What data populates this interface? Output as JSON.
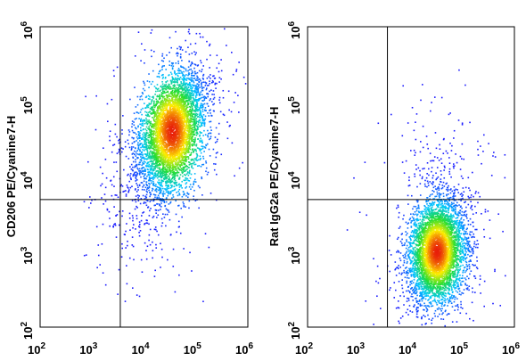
{
  "chart_data": [
    {
      "type": "scatter",
      "title": "",
      "xlabel": "",
      "ylabel": "CD206 PE/Cyanine7-H",
      "xscale": "log",
      "yscale": "log",
      "xlim": [
        100,
        1000000
      ],
      "ylim": [
        100,
        1000000
      ],
      "x_ticks": [
        {
          "value": 100,
          "base": "10",
          "exp": "2"
        },
        {
          "value": 1000,
          "base": "10",
          "exp": "3"
        },
        {
          "value": 10000,
          "base": "10",
          "exp": "4"
        },
        {
          "value": 100000,
          "base": "10",
          "exp": "5"
        },
        {
          "value": 1000000,
          "base": "10",
          "exp": "6"
        }
      ],
      "y_ticks": [
        {
          "value": 100,
          "base": "10",
          "exp": "2"
        },
        {
          "value": 1000,
          "base": "10",
          "exp": "3"
        },
        {
          "value": 10000,
          "base": "10",
          "exp": "4"
        },
        {
          "value": 100000,
          "base": "10",
          "exp": "5"
        },
        {
          "value": 1000000,
          "base": "10",
          "exp": "6"
        }
      ],
      "quadrant_gate": {
        "x": 3500,
        "y": 5000
      },
      "population_center": {
        "x": 35000,
        "y": 40000
      },
      "color_map": "density (blue → cyan → green → yellow → red)",
      "grid": false
    },
    {
      "type": "scatter",
      "title": "",
      "xlabel": "",
      "ylabel": "Rat IgG2a PE/Cyanine7-H",
      "xscale": "log",
      "yscale": "log",
      "xlim": [
        100,
        1000000
      ],
      "ylim": [
        100,
        1000000
      ],
      "x_ticks": [
        {
          "value": 100,
          "base": "10",
          "exp": "2"
        },
        {
          "value": 1000,
          "base": "10",
          "exp": "3"
        },
        {
          "value": 10000,
          "base": "10",
          "exp": "4"
        },
        {
          "value": 100000,
          "base": "10",
          "exp": "5"
        },
        {
          "value": 1000000,
          "base": "10",
          "exp": "6"
        }
      ],
      "y_ticks": [
        {
          "value": 100,
          "base": "10",
          "exp": "2"
        },
        {
          "value": 1000,
          "base": "10",
          "exp": "3"
        },
        {
          "value": 10000,
          "base": "10",
          "exp": "4"
        },
        {
          "value": 100000,
          "base": "10",
          "exp": "5"
        },
        {
          "value": 1000000,
          "base": "10",
          "exp": "6"
        }
      ],
      "quadrant_gate": {
        "x": 3500,
        "y": 5000
      },
      "population_center": {
        "x": 32000,
        "y": 1000
      },
      "color_map": "density (blue → cyan → green → yellow → red)",
      "grid": false
    }
  ],
  "colors": {
    "low_density": "#1a1aff",
    "mid_low": "#00c8ff",
    "mid": "#22dd33",
    "mid_high": "#ffee00",
    "high_density": "#e81e0a",
    "frame": "#000000"
  }
}
